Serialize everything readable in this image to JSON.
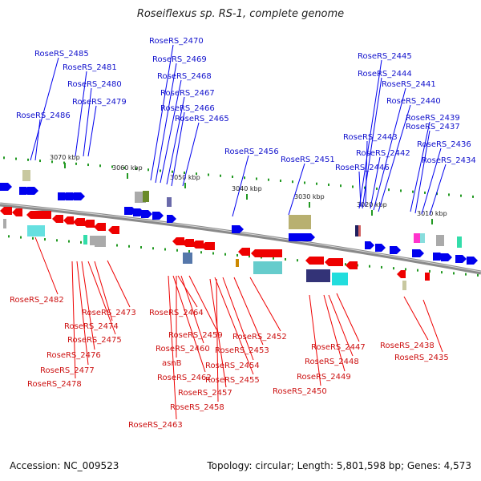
{
  "title": "Roseiflexus sp. RS-1, complete genome",
  "accession": "Accession: NC_009523",
  "summary": "Topology: circular; Length: 5,801,598 bp; Genes: 4,573",
  "colors": {
    "forward": "#0000ee",
    "reverse": "#ee0000",
    "backbone": "#888888",
    "tick": "#229922"
  },
  "kbp_marks": [
    "3070 kbp",
    "3060 kbp",
    "3050 kbp",
    "3040 kbp",
    "3030 kbp",
    "3020 kbp",
    "3010 kbp"
  ],
  "forward_labels": [
    "RoseRS_2485",
    "RoseRS_2481",
    "RoseRS_2480",
    "RoseRS_2479",
    "RoseRS_2486",
    "RoseRS_2470",
    "RoseRS_2469",
    "RoseRS_2468",
    "RoseRS_2467",
    "RoseRS_2466",
    "RoseRS_2465",
    "RoseRS_2456",
    "RoseRS_2451",
    "RoseRS_2445",
    "RoseRS_2444",
    "RoseRS_2441",
    "RoseRS_2440",
    "RoseRS_2439",
    "RoseRS_2437",
    "RoseRS_2443",
    "RoseRS_2436",
    "RoseRS_2442",
    "RoseRS_2434",
    "RoseRS_2446"
  ],
  "reverse_labels": [
    "RoseRS_2482",
    "RoseRS_2473",
    "RoseRS_2474",
    "RoseRS_2475",
    "RoseRS_2476",
    "RoseRS_2477",
    "RoseRS_2478",
    "RoseRS_2464",
    "RoseRS_2459",
    "RoseRS_2460",
    "asnB",
    "RoseRS_2462",
    "RoseRS_2463",
    "RoseRS_2457",
    "RoseRS_2458",
    "RoseRS_2455",
    "RoseRS_2454",
    "RoseRS_2453",
    "RoseRS_2452",
    "RoseRS_2447",
    "RoseRS_2448",
    "RoseRS_2449",
    "RoseRS_2450",
    "RoseRS_2438",
    "RoseRS_2435"
  ]
}
